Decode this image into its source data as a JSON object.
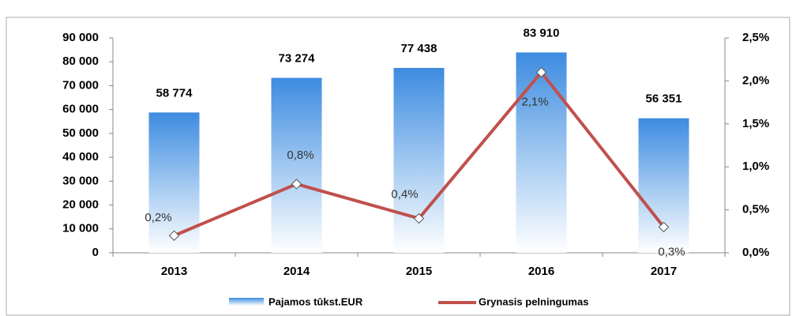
{
  "chart_data": {
    "type": "bar-line",
    "categories": [
      "2013",
      "2014",
      "2015",
      "2016",
      "2017"
    ],
    "series": [
      {
        "name": "Pajamos tūkst.EUR",
        "color": "#4f94d8",
        "values": [
          58774,
          73274,
          77438,
          83910,
          56351
        ],
        "value_labels": [
          "58 774",
          "73 274",
          "77 438",
          "83 910",
          "56 351"
        ]
      },
      {
        "name": "Grynasis pelningumas",
        "color": "#c0504d",
        "axis": "y2",
        "values": [
          0.2,
          0.8,
          0.4,
          2.1,
          0.3
        ],
        "value_labels": [
          "0,2%",
          "0,8%",
          "0,4%",
          "2,1%",
          "0,3%"
        ]
      }
    ],
    "ylim": [
      0,
      90000
    ],
    "yticks": [
      0,
      {
        "value": 10000,
        "label": "10 000"
      },
      {
        "value": 20000,
        "label": "20 000"
      },
      {
        "value": 30000,
        "label": "30 000"
      },
      {
        "value": 40000,
        "label": "40 000"
      },
      {
        "value": 50000,
        "label": "50 000"
      },
      {
        "value": 60000,
        "label": "60 000"
      },
      {
        "value": 70000,
        "label": "70 000"
      },
      {
        "value": 80000,
        "label": "80 000"
      },
      {
        "value": 90000,
        "label": "90 000"
      }
    ],
    "y2lim": [
      0,
      2.5
    ],
    "y2ticks": [
      {
        "value": 0,
        "label": "0,0%"
      },
      {
        "value": 0.5,
        "label": "0,5%"
      },
      {
        "value": 1,
        "label": "1,0%"
      },
      {
        "value": 1.5,
        "label": "1,5%"
      },
      {
        "value": 2,
        "label": "2,0%"
      },
      {
        "value": 2.5,
        "label": "2,5%"
      }
    ],
    "legend": "bottom"
  }
}
